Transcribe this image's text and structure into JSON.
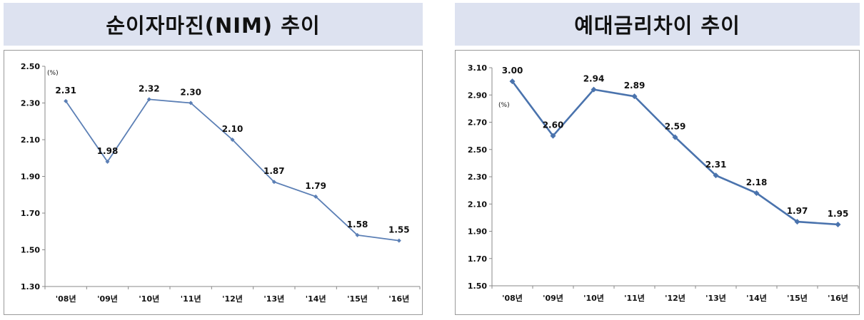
{
  "panels": [
    {
      "title": "순이자마진(NIM) 추이",
      "chart_data": {
        "type": "line",
        "categories": [
          "'08년",
          "'09년",
          "'10년",
          "'11년",
          "'12년",
          "'13년",
          "'14년",
          "'15년",
          "'16년"
        ],
        "series": [
          {
            "values": [
              2.31,
              1.98,
              2.32,
              2.3,
              2.1,
              1.87,
              1.79,
              1.58,
              1.55
            ]
          }
        ],
        "data_labels": [
          "2.31",
          "1.98",
          "2.32",
          "2.30",
          "2.10",
          "1.87",
          "1.79",
          "1.58",
          "1.55"
        ],
        "unit_label": "(%)",
        "ylim": [
          1.3,
          2.5
        ],
        "yticks": [
          "2.50",
          "2.30",
          "2.10",
          "1.90",
          "1.70",
          "1.50",
          "1.30"
        ],
        "color": "#5b7fb5",
        "grid": false
      }
    },
    {
      "title": "예대금리차이 추이",
      "chart_data": {
        "type": "line",
        "categories": [
          "'08년",
          "'09년",
          "'10년",
          "'11년",
          "'12년",
          "'13년",
          "'14년",
          "'15년",
          "'16년"
        ],
        "series": [
          {
            "values": [
              3.0,
              2.6,
              2.94,
              2.89,
              2.59,
              2.31,
              2.18,
              1.97,
              1.95
            ]
          }
        ],
        "data_labels": [
          "3.00",
          "2.60",
          "2.94",
          "2.89",
          "2.59",
          "2.31",
          "2.18",
          "1.97",
          "1.95"
        ],
        "unit_label": "(%)",
        "ylim": [
          1.5,
          3.1
        ],
        "yticks": [
          "3.10",
          "2.90",
          "2.70",
          "2.50",
          "2.30",
          "2.10",
          "1.90",
          "1.70",
          "1.50"
        ],
        "color": "#4a73ad",
        "grid": false
      }
    }
  ]
}
